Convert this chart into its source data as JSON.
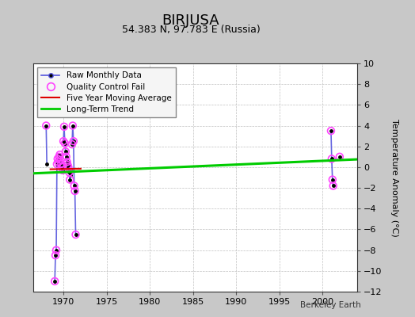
{
  "title": "BIRJUSA",
  "subtitle": "54.383 N, 97.783 E (Russia)",
  "ylabel": "Temperature Anomaly (°C)",
  "credit": "Berkeley Earth",
  "xlim": [
    1966.5,
    2004
  ],
  "ylim": [
    -12,
    10
  ],
  "yticks": [
    -12,
    -10,
    -8,
    -6,
    -4,
    -2,
    0,
    2,
    4,
    6,
    8,
    10
  ],
  "xticks": [
    1970,
    1975,
    1980,
    1985,
    1990,
    1995,
    2000
  ],
  "fig_bg_color": "#c8c8c8",
  "plot_bg_color": "#ffffff",
  "raw_segments": [
    [
      [
        1968.0,
        1968.08
      ],
      [
        4.0,
        0.3
      ]
    ],
    [
      [
        1969.0,
        1969.08,
        1969.17,
        1969.25,
        1969.33,
        1969.42,
        1969.5,
        1969.58,
        1969.67,
        1969.75,
        1969.83,
        1969.92
      ],
      [
        -11.0,
        -8.5,
        -8.0,
        0.3,
        0.8,
        0.5,
        1.0,
        1.2,
        0.7,
        0.3,
        0.0,
        -0.3
      ]
    ],
    [
      [
        1970.0,
        1970.08,
        1970.17,
        1970.25,
        1970.33,
        1970.42,
        1970.5,
        1970.58,
        1970.67,
        1970.75,
        1970.83,
        1970.92
      ],
      [
        2.5,
        3.9,
        2.3,
        1.5,
        1.0,
        0.5,
        0.2,
        0.0,
        -0.5,
        -1.2,
        -0.8,
        -0.4
      ]
    ],
    [
      [
        1971.0,
        1971.08,
        1971.17,
        1971.25,
        1971.33,
        1971.42
      ],
      [
        2.2,
        4.0,
        2.5,
        -1.8,
        -2.3,
        -6.5
      ]
    ],
    [
      [
        2001.0,
        2001.08,
        2001.17,
        2001.25
      ],
      [
        3.5,
        0.8,
        -1.2,
        -1.8
      ]
    ],
    [
      [
        2002.0
      ],
      [
        1.0
      ]
    ]
  ],
  "qc_fail_points": [
    [
      1968.0,
      4.0
    ],
    [
      1969.0,
      -11.0
    ],
    [
      1969.08,
      -8.5
    ],
    [
      1969.17,
      -8.0
    ],
    [
      1969.25,
      0.3
    ],
    [
      1969.33,
      0.8
    ],
    [
      1969.42,
      0.5
    ],
    [
      1969.5,
      1.0
    ],
    [
      1969.58,
      1.2
    ],
    [
      1969.67,
      0.7
    ],
    [
      1969.75,
      0.3
    ],
    [
      1969.83,
      0.0
    ],
    [
      1969.92,
      -0.3
    ],
    [
      1970.0,
      2.5
    ],
    [
      1970.08,
      3.9
    ],
    [
      1970.17,
      2.3
    ],
    [
      1970.25,
      1.5
    ],
    [
      1970.33,
      1.0
    ],
    [
      1970.42,
      0.5
    ],
    [
      1970.5,
      0.2
    ],
    [
      1970.58,
      0.0
    ],
    [
      1970.67,
      -0.5
    ],
    [
      1970.75,
      -1.2
    ],
    [
      1971.0,
      2.2
    ],
    [
      1971.08,
      4.0
    ],
    [
      1971.17,
      2.5
    ],
    [
      1971.25,
      -1.8
    ],
    [
      1971.33,
      -2.3
    ],
    [
      1971.42,
      -6.5
    ],
    [
      2001.0,
      3.5
    ],
    [
      2001.08,
      0.8
    ],
    [
      2001.17,
      -1.2
    ],
    [
      2001.25,
      -1.8
    ],
    [
      2002.0,
      1.0
    ]
  ],
  "trend_x": [
    1966.5,
    2004
  ],
  "trend_y": [
    -0.6,
    0.75
  ],
  "raw_line_color": "#5555dd",
  "raw_marker_color": "#000000",
  "qc_fail_color": "#ff44ff",
  "five_year_color": "#dd0000",
  "trend_color": "#00cc00"
}
